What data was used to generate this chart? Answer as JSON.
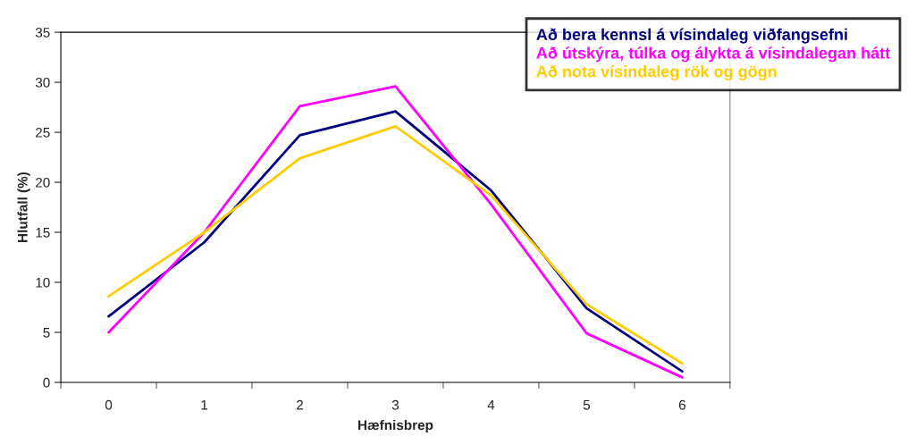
{
  "chart_data": {
    "type": "line",
    "xlabel": "Hæfnisbrep",
    "ylabel": "Hlutfall (%)",
    "categories": [
      "0",
      "1",
      "2",
      "3",
      "4",
      "5",
      "6"
    ],
    "series": [
      {
        "name": "Að bera kennsl á vísindaleg viðfangsefni",
        "color": "#000080",
        "values": [
          6.6,
          14.0,
          24.7,
          27.1,
          19.2,
          7.4,
          1.1
        ]
      },
      {
        "name": "Að útskýra, túlka og álykta á vísindalegan hátt",
        "color": "#ff00ff",
        "values": [
          5.0,
          15.0,
          27.6,
          29.6,
          17.8,
          4.9,
          0.5
        ]
      },
      {
        "name": "Að nota vísindaleg rök og gögn",
        "color": "#ffcc00",
        "values": [
          8.6,
          15.0,
          22.4,
          25.6,
          18.7,
          7.8,
          1.9
        ]
      }
    ],
    "ylim": [
      0,
      35
    ],
    "yticks": [
      0,
      5,
      10,
      15,
      20,
      25,
      30,
      35
    ],
    "grid": false,
    "legend": "top right",
    "marker": "none",
    "line_style": "solid"
  }
}
